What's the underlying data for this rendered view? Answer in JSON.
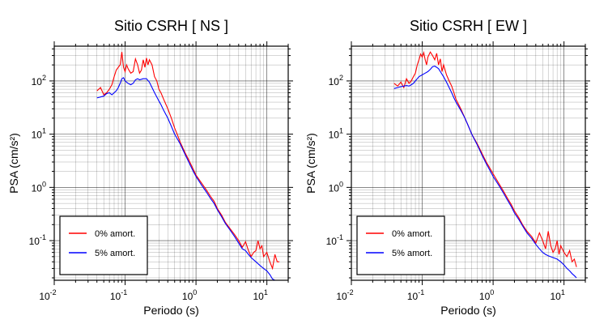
{
  "chart_data": [
    {
      "type": "line",
      "title": "Sitio CSRH [ NS ]",
      "xlabel": "Periodo (s)",
      "ylabel": "PSA (cm/s²)",
      "xscale": "log",
      "yscale": "log",
      "xlim": [
        0.01,
        20
      ],
      "ylim": [
        0.018,
        450
      ],
      "grid": true,
      "legend_position": "bottom-left",
      "series": [
        {
          "name": "0% amort.",
          "color": "#ff0000",
          "x": [
            0.04,
            0.045,
            0.05,
            0.055,
            0.06,
            0.065,
            0.07,
            0.075,
            0.08,
            0.085,
            0.09,
            0.095,
            0.1,
            0.105,
            0.11,
            0.12,
            0.13,
            0.14,
            0.15,
            0.16,
            0.17,
            0.18,
            0.19,
            0.2,
            0.21,
            0.22,
            0.24,
            0.26,
            0.28,
            0.3,
            0.32,
            0.35,
            0.4,
            0.45,
            0.5,
            0.55,
            0.6,
            0.7,
            0.8,
            0.9,
            1.0,
            1.2,
            1.4,
            1.6,
            1.8,
            2.0,
            2.3,
            2.6,
            3.0,
            3.5,
            4.0,
            4.5,
            5.0,
            5.5,
            6.0,
            6.5,
            7.0,
            7.5,
            8.0,
            8.5,
            9.0,
            10,
            11,
            12,
            13,
            14,
            15
          ],
          "y": [
            65,
            75,
            55,
            60,
            70,
            85,
            120,
            160,
            180,
            200,
            350,
            180,
            150,
            200,
            170,
            140,
            150,
            260,
            200,
            140,
            160,
            250,
            180,
            270,
            200,
            250,
            200,
            120,
            100,
            70,
            60,
            45,
            30,
            20,
            13,
            9.5,
            7,
            4.5,
            3.2,
            2.3,
            1.7,
            1.2,
            0.9,
            0.68,
            0.55,
            0.4,
            0.3,
            0.22,
            0.17,
            0.13,
            0.1,
            0.075,
            0.095,
            0.065,
            0.05,
            0.06,
            0.065,
            0.1,
            0.07,
            0.08,
            0.05,
            0.06,
            0.04,
            0.03,
            0.055,
            0.04,
            0.04
          ]
        },
        {
          "name": "5% amort.",
          "color": "#0000ff",
          "x": [
            0.04,
            0.045,
            0.05,
            0.055,
            0.06,
            0.065,
            0.07,
            0.075,
            0.08,
            0.085,
            0.09,
            0.095,
            0.1,
            0.11,
            0.12,
            0.13,
            0.14,
            0.15,
            0.16,
            0.18,
            0.2,
            0.22,
            0.24,
            0.26,
            0.28,
            0.3,
            0.32,
            0.35,
            0.4,
            0.45,
            0.5,
            0.55,
            0.6,
            0.7,
            0.8,
            0.9,
            1.0,
            1.2,
            1.4,
            1.6,
            1.8,
            2.0,
            2.3,
            2.6,
            3.0,
            3.5,
            4.0,
            4.5,
            5.0,
            5.5,
            6.0,
            7.0,
            8.0,
            9.0,
            10,
            11,
            12,
            13,
            14,
            15
          ],
          "y": [
            48,
            50,
            52,
            58,
            60,
            55,
            60,
            65,
            75,
            90,
            110,
            115,
            100,
            90,
            85,
            90,
            105,
            110,
            105,
            110,
            110,
            95,
            75,
            60,
            50,
            42,
            36,
            28,
            20,
            14,
            10,
            8,
            6.5,
            4.2,
            2.9,
            2.1,
            1.6,
            1.1,
            0.82,
            0.62,
            0.5,
            0.38,
            0.28,
            0.21,
            0.16,
            0.12,
            0.09,
            0.07,
            0.065,
            0.055,
            0.048,
            0.04,
            0.034,
            0.03,
            0.027,
            0.023,
            0.019,
            0.018,
            0.018,
            0.018
          ]
        }
      ]
    },
    {
      "type": "line",
      "title": "Sitio CSRH [ EW ]",
      "xlabel": "Periodo (s)",
      "ylabel": "PSA (cm/s²)",
      "xscale": "log",
      "yscale": "log",
      "xlim": [
        0.01,
        20
      ],
      "ylim": [
        0.018,
        450
      ],
      "grid": true,
      "legend_position": "bottom-left",
      "series": [
        {
          "name": "0% amort.",
          "color": "#ff0000",
          "x": [
            0.04,
            0.045,
            0.05,
            0.055,
            0.06,
            0.065,
            0.07,
            0.075,
            0.08,
            0.085,
            0.09,
            0.095,
            0.1,
            0.105,
            0.11,
            0.115,
            0.12,
            0.13,
            0.14,
            0.15,
            0.16,
            0.17,
            0.18,
            0.19,
            0.2,
            0.22,
            0.24,
            0.26,
            0.28,
            0.3,
            0.35,
            0.4,
            0.45,
            0.5,
            0.6,
            0.7,
            0.8,
            0.9,
            1.0,
            1.2,
            1.4,
            1.6,
            1.8,
            2.0,
            2.3,
            2.6,
            3.0,
            3.5,
            4.0,
            4.5,
            5.0,
            5.5,
            6.0,
            6.5,
            7.0,
            7.5,
            8.0,
            8.5,
            9.0,
            10,
            11,
            12,
            13,
            14,
            15
          ],
          "y": [
            90,
            80,
            95,
            75,
            110,
            90,
            100,
            120,
            140,
            200,
            250,
            320,
            280,
            340,
            250,
            200,
            280,
            350,
            300,
            250,
            330,
            200,
            260,
            150,
            200,
            130,
            100,
            80,
            60,
            45,
            30,
            20,
            14,
            10,
            6.5,
            4.3,
            3.0,
            2.3,
            1.8,
            1.2,
            0.85,
            0.62,
            0.48,
            0.36,
            0.27,
            0.2,
            0.15,
            0.12,
            0.09,
            0.14,
            0.1,
            0.07,
            0.15,
            0.08,
            0.06,
            0.07,
            0.1,
            0.055,
            0.08,
            0.06,
            0.05,
            0.065,
            0.04,
            0.045,
            0.032
          ]
        },
        {
          "name": "5% amort.",
          "color": "#0000ff",
          "x": [
            0.04,
            0.045,
            0.05,
            0.055,
            0.06,
            0.065,
            0.07,
            0.075,
            0.08,
            0.085,
            0.09,
            0.1,
            0.11,
            0.12,
            0.13,
            0.14,
            0.15,
            0.16,
            0.17,
            0.18,
            0.2,
            0.22,
            0.24,
            0.26,
            0.28,
            0.3,
            0.35,
            0.4,
            0.45,
            0.5,
            0.6,
            0.7,
            0.8,
            0.9,
            1.0,
            1.2,
            1.4,
            1.6,
            1.8,
            2.0,
            2.3,
            2.6,
            3.0,
            3.5,
            4.0,
            4.5,
            5.0,
            5.5,
            6.0,
            7.0,
            8.0,
            9.0,
            10,
            11,
            12,
            13,
            14,
            15
          ],
          "y": [
            72,
            75,
            78,
            80,
            82,
            80,
            85,
            90,
            100,
            110,
            120,
            130,
            140,
            150,
            165,
            185,
            190,
            180,
            170,
            150,
            120,
            95,
            75,
            60,
            48,
            40,
            28,
            20,
            14,
            10,
            6.2,
            4.0,
            2.8,
            2.1,
            1.6,
            1.1,
            0.78,
            0.57,
            0.44,
            0.33,
            0.25,
            0.19,
            0.14,
            0.11,
            0.085,
            0.07,
            0.06,
            0.055,
            0.052,
            0.048,
            0.045,
            0.04,
            0.035,
            0.03,
            0.027,
            0.024,
            0.022,
            0.02
          ]
        }
      ]
    }
  ]
}
